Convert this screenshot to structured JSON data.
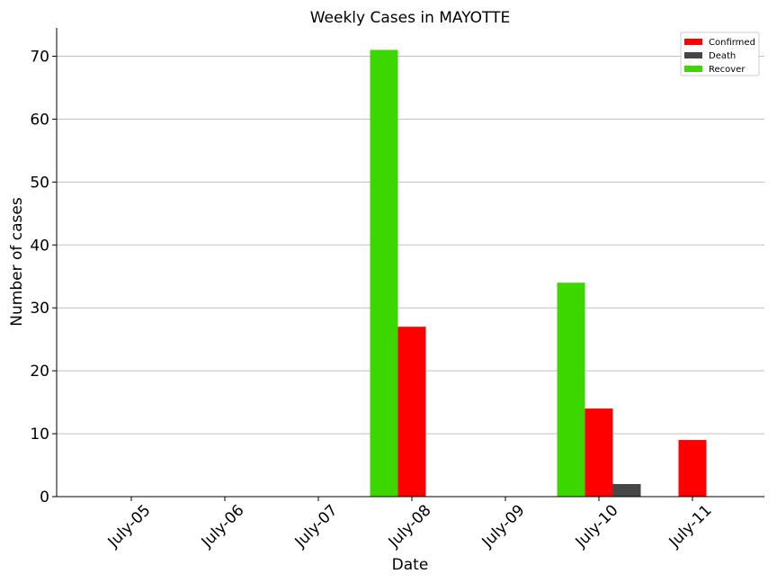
{
  "chart_data": {
    "type": "bar",
    "title": "Weekly Cases in MAYOTTE",
    "xlabel": "Date",
    "ylabel": "Number of cases",
    "categories": [
      "July-05",
      "July-06",
      "July-07",
      "July-08",
      "July-09",
      "July-10",
      "July-11"
    ],
    "ylim": [
      0,
      74.5
    ],
    "yticks": [
      0,
      10,
      20,
      30,
      40,
      50,
      60,
      70
    ],
    "grid": "horizontal",
    "legend_position": "top-right",
    "series": [
      {
        "name": "Recover",
        "color": "#3cd700",
        "values": [
          0,
          0,
          0,
          71,
          0,
          34,
          0
        ]
      },
      {
        "name": "Confirmed",
        "color": "#ff0000",
        "values": [
          0,
          0,
          0,
          27,
          0,
          14,
          9
        ]
      },
      {
        "name": "Death",
        "color": "#464646",
        "values": [
          0,
          0,
          0,
          0,
          0,
          2,
          0
        ]
      }
    ],
    "legend_order": [
      "Confirmed",
      "Death",
      "Recover"
    ]
  }
}
